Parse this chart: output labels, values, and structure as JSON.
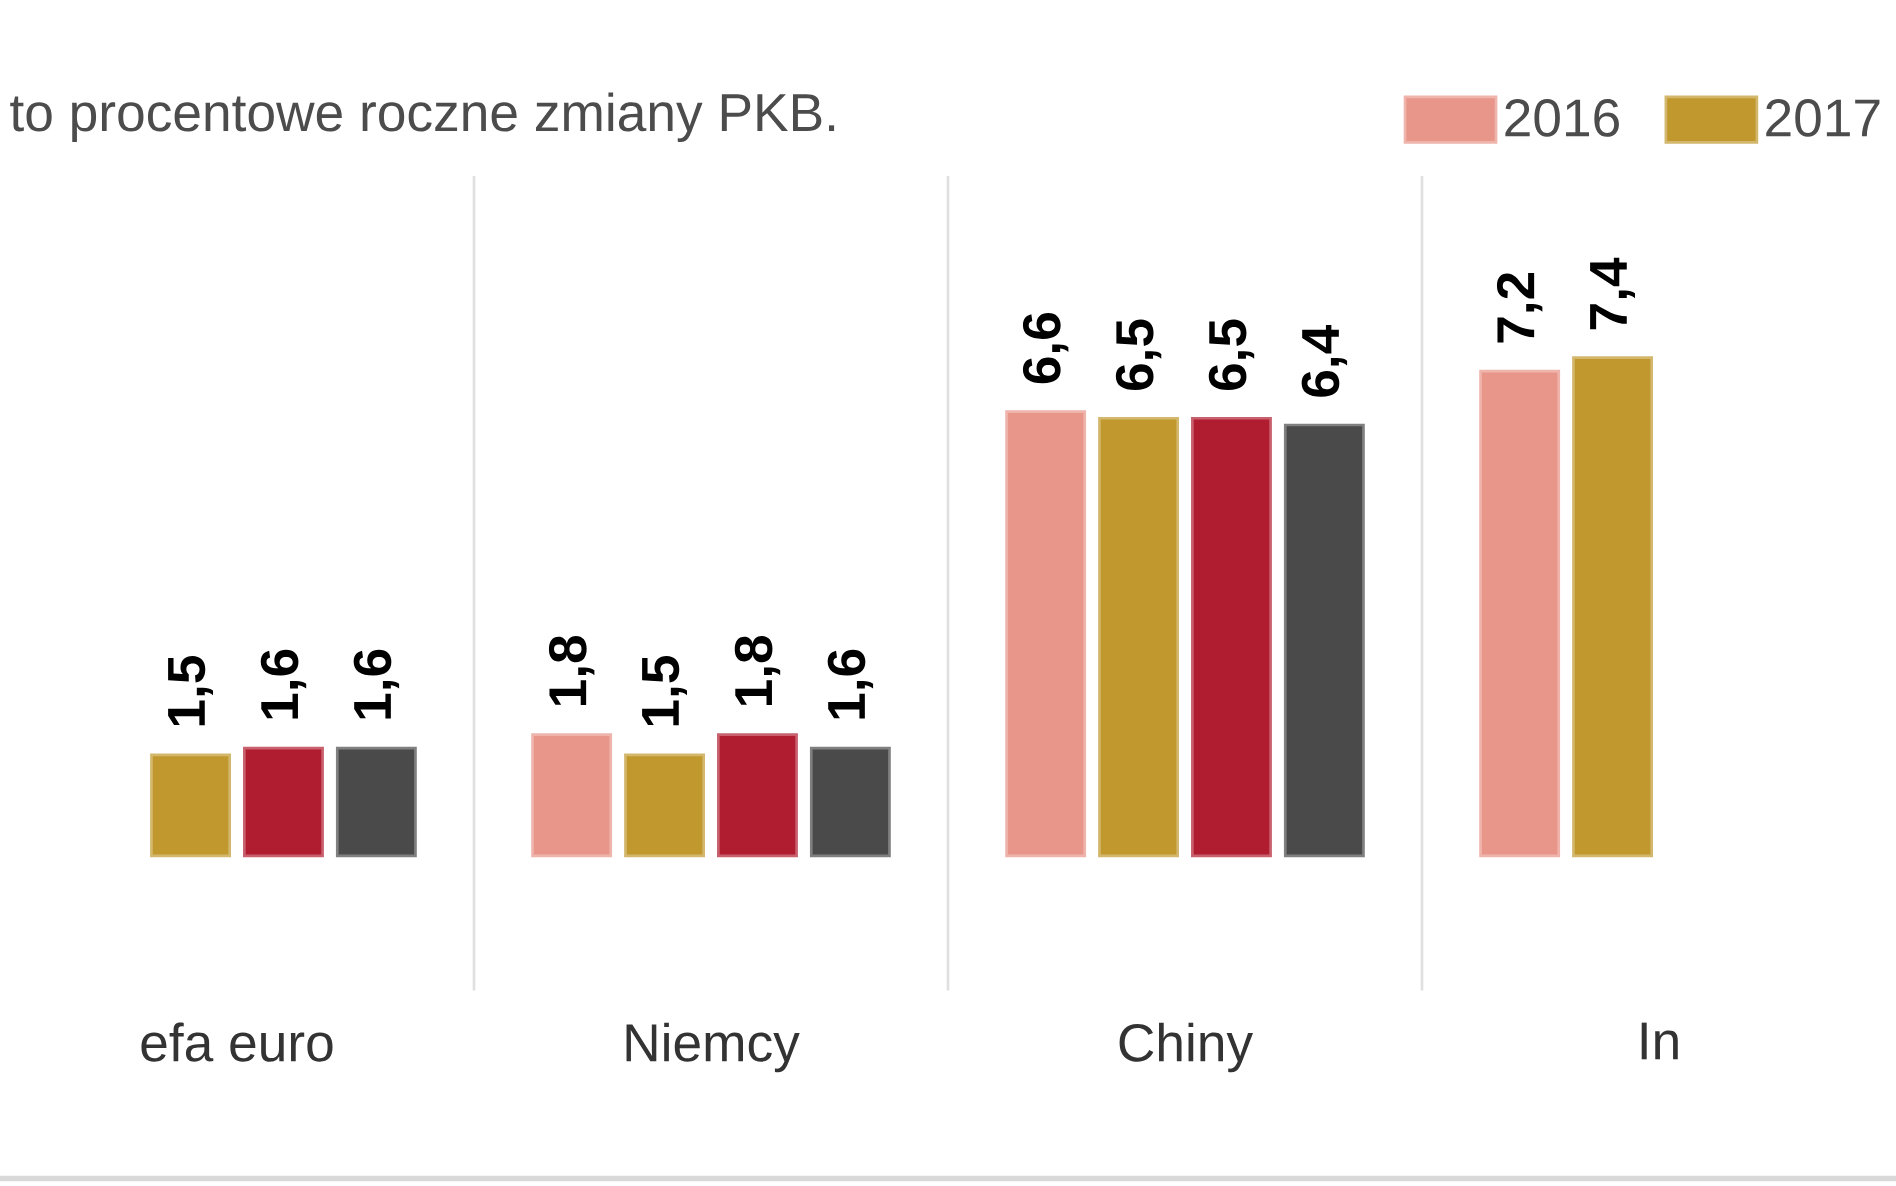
{
  "chart_data": {
    "type": "bar",
    "title": "to procentowe roczne zmiany PKB.",
    "categories": [
      "efa euro",
      "Niemcy",
      "Chiny",
      "In"
    ],
    "series": [
      {
        "name": "2016",
        "color": "#e8968a",
        "values": [
          null,
          1.8,
          6.6,
          7.2
        ],
        "value_labels": [
          null,
          "1,8",
          "6,6",
          "7,2"
        ]
      },
      {
        "name": "2017",
        "color": "#c0982e",
        "values": [
          1.5,
          1.5,
          6.5,
          7.4
        ],
        "value_labels": [
          "1,5",
          "1,5",
          "6,5",
          "7,4"
        ]
      },
      {
        "color": "#b01c30",
        "values": [
          1.6,
          1.8,
          6.5,
          null
        ],
        "value_labels": [
          "1,6",
          "1,8",
          "6,5",
          null
        ]
      },
      {
        "color": "#4a4a4a",
        "values": [
          1.6,
          1.6,
          6.4,
          null
        ],
        "value_labels": [
          "1,6",
          "1,6",
          "6,4",
          null
        ]
      }
    ],
    "ylim": [
      -2,
      10.1
    ],
    "legend": "top right"
  }
}
